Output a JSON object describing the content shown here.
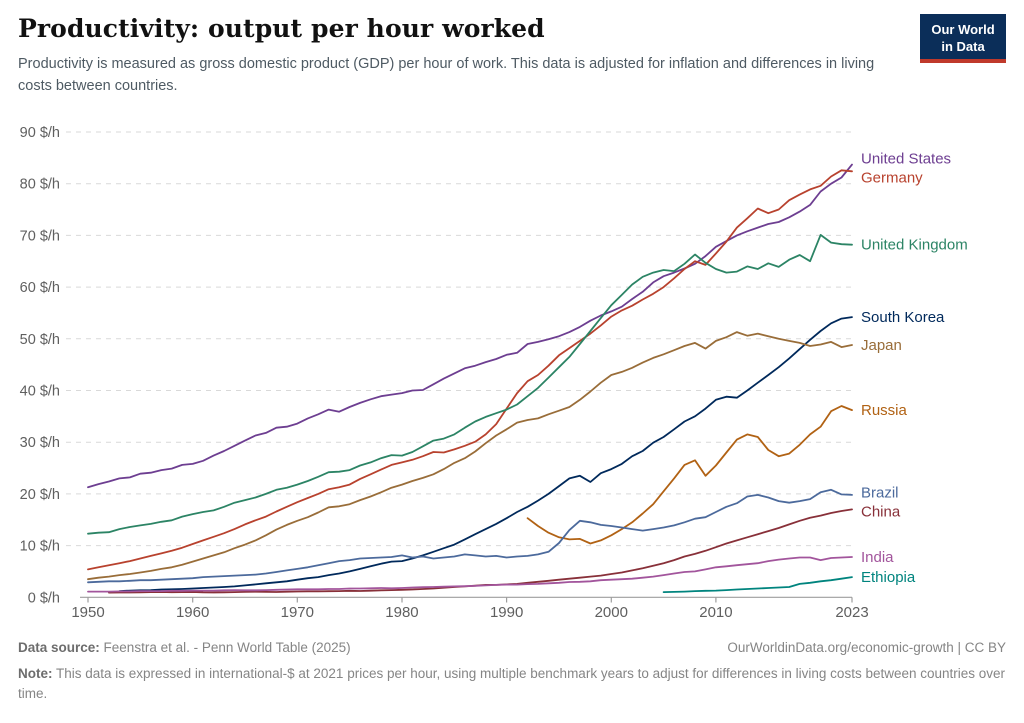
{
  "header": {
    "title": "Productivity: output per hour worked",
    "subtitle": "Productivity is measured as gross domestic product (GDP) per hour of work. This data is adjusted for inflation and differences in living costs between countries.",
    "logo": {
      "line1": "Our World",
      "line2": "in Data",
      "bg_color": "#0B2E59",
      "accent_color": "#C0392B"
    }
  },
  "chart_data": {
    "type": "line",
    "unit": "$/h",
    "xlim": [
      1950,
      2023
    ],
    "ylim": [
      0,
      90
    ],
    "y_ticks": [
      0,
      10,
      20,
      30,
      40,
      50,
      60,
      70,
      80,
      90
    ],
    "x_ticks": [
      1950,
      1960,
      1970,
      1980,
      1990,
      2000,
      2010,
      2023
    ],
    "grid": "horizontal-dashed",
    "legend": "labels-at-line-ends-right",
    "axis_color": "#9e9e9e",
    "grid_color": "#d9d9d9",
    "tick_label_color": "#5f5f5f",
    "series": [
      {
        "name": "United States",
        "color": "#6D3E91",
        "start_year": 1950,
        "values": [
          21.3,
          21.9,
          22.4,
          23.0,
          23.2,
          23.9,
          24.1,
          24.6,
          24.9,
          25.6,
          25.8,
          26.4,
          27.4,
          28.3,
          29.3,
          30.3,
          31.3,
          31.8,
          32.8,
          33.0,
          33.6,
          34.6,
          35.4,
          36.3,
          35.9,
          36.8,
          37.6,
          38.3,
          38.9,
          39.2,
          39.5,
          40.0,
          40.1,
          41.2,
          42.3,
          43.3,
          44.3,
          44.8,
          45.5,
          46.1,
          46.9,
          47.3,
          49.0,
          49.4,
          49.9,
          50.5,
          51.3,
          52.3,
          53.5,
          54.5,
          55.3,
          56.2,
          57.7,
          59.1,
          60.9,
          62.1,
          62.8,
          63.6,
          64.5,
          66.0,
          67.8,
          68.9,
          70.0,
          70.8,
          71.5,
          72.2,
          72.6,
          73.5,
          74.6,
          75.9,
          78.5,
          80.0,
          81.2,
          83.7
        ]
      },
      {
        "name": "Germany",
        "color": "#B8422E",
        "start_year": 1950,
        "values": [
          5.4,
          5.8,
          6.2,
          6.6,
          7.0,
          7.5,
          8.0,
          8.5,
          9.0,
          9.6,
          10.3,
          11.0,
          11.7,
          12.4,
          13.2,
          14.1,
          14.9,
          15.6,
          16.6,
          17.5,
          18.4,
          19.2,
          20.0,
          20.9,
          21.3,
          21.8,
          22.9,
          23.8,
          24.7,
          25.6,
          26.1,
          26.6,
          27.3,
          28.1,
          28.0,
          28.6,
          29.3,
          30.1,
          31.5,
          33.5,
          36.5,
          39.5,
          41.8,
          43.0,
          44.8,
          46.8,
          48.2,
          49.6,
          51.0,
          52.6,
          54.3,
          55.5,
          56.4,
          57.6,
          58.7,
          60.0,
          61.7,
          63.5,
          65.0,
          64.3,
          66.5,
          68.8,
          71.5,
          73.3,
          75.2,
          74.3,
          75.0,
          76.8,
          77.9,
          78.9,
          79.6,
          81.4,
          82.6,
          82.4
        ]
      },
      {
        "name": "United Kingdom",
        "color": "#2C8465",
        "start_year": 1950,
        "values": [
          12.3,
          12.5,
          12.6,
          13.2,
          13.6,
          13.9,
          14.2,
          14.6,
          14.9,
          15.6,
          16.1,
          16.5,
          16.8,
          17.5,
          18.3,
          18.8,
          19.3,
          20.0,
          20.8,
          21.2,
          21.8,
          22.5,
          23.3,
          24.2,
          24.3,
          24.6,
          25.5,
          26.1,
          26.9,
          27.5,
          27.4,
          28.1,
          29.2,
          30.3,
          30.7,
          31.5,
          32.8,
          34.0,
          34.9,
          35.6,
          36.3,
          37.3,
          38.9,
          40.5,
          42.5,
          44.5,
          46.5,
          49.0,
          51.5,
          54.0,
          56.5,
          58.5,
          60.5,
          62.0,
          62.8,
          63.3,
          63.1,
          64.5,
          66.3,
          64.7,
          63.5,
          62.8,
          63.0,
          64.0,
          63.5,
          64.6,
          63.9,
          65.3,
          66.2,
          65.0,
          70.1,
          68.6,
          68.3,
          68.2
        ]
      },
      {
        "name": "South Korea",
        "color": "#00295B",
        "start_year": 1953,
        "values": [
          1.2,
          1.3,
          1.35,
          1.4,
          1.5,
          1.55,
          1.6,
          1.7,
          1.8,
          1.9,
          2.0,
          2.1,
          2.3,
          2.5,
          2.7,
          2.9,
          3.1,
          3.4,
          3.7,
          3.9,
          4.3,
          4.6,
          5.0,
          5.5,
          6.0,
          6.5,
          6.9,
          7.0,
          7.5,
          8.1,
          8.8,
          9.5,
          10.2,
          11.2,
          12.2,
          13.2,
          14.2,
          15.3,
          16.5,
          17.5,
          18.7,
          20.0,
          21.5,
          23.0,
          23.5,
          22.3,
          24.0,
          24.8,
          25.8,
          27.3,
          28.3,
          29.9,
          31.0,
          32.5,
          34.0,
          35.0,
          36.5,
          38.2,
          38.8,
          38.6,
          40.0,
          41.5,
          43.0,
          44.5,
          46.2,
          48.0,
          49.8,
          51.5,
          53.0,
          53.9,
          54.2
        ]
      },
      {
        "name": "Japan",
        "color": "#996D39",
        "start_year": 1950,
        "values": [
          3.5,
          3.8,
          4.0,
          4.3,
          4.5,
          4.8,
          5.1,
          5.5,
          5.8,
          6.3,
          6.9,
          7.5,
          8.1,
          8.7,
          9.5,
          10.2,
          11.0,
          12.0,
          13.1,
          14.0,
          14.8,
          15.5,
          16.4,
          17.4,
          17.6,
          18.0,
          18.8,
          19.5,
          20.3,
          21.2,
          21.8,
          22.5,
          23.1,
          23.8,
          24.8,
          26.0,
          26.9,
          28.2,
          29.8,
          31.3,
          32.5,
          33.8,
          34.3,
          34.6,
          35.4,
          36.1,
          36.8,
          38.2,
          39.8,
          41.5,
          43.0,
          43.6,
          44.4,
          45.4,
          46.3,
          47.0,
          47.8,
          48.6,
          49.2,
          48.1,
          49.6,
          50.3,
          51.3,
          50.6,
          51.0,
          50.5,
          50.0,
          49.6,
          49.2,
          48.6,
          48.9,
          49.4,
          48.4,
          48.8
        ]
      },
      {
        "name": "Russia",
        "color": "#B16214",
        "start_year": 1992,
        "values": [
          15.3,
          13.8,
          12.5,
          11.6,
          11.2,
          11.3,
          10.4,
          11.0,
          12.0,
          13.2,
          14.5,
          16.2,
          18.0,
          20.5,
          23.0,
          25.6,
          26.5,
          23.5,
          25.5,
          28.0,
          30.5,
          31.5,
          31.0,
          28.5,
          27.3,
          27.8,
          29.5,
          31.5,
          33.0,
          36.0,
          37.0,
          36.2
        ]
      },
      {
        "name": "Brazil",
        "color": "#4C6A9C",
        "start_year": 1950,
        "values": [
          2.9,
          3.0,
          3.1,
          3.1,
          3.2,
          3.3,
          3.3,
          3.4,
          3.5,
          3.6,
          3.7,
          3.9,
          4.0,
          4.1,
          4.2,
          4.3,
          4.4,
          4.6,
          4.9,
          5.2,
          5.5,
          5.8,
          6.2,
          6.6,
          7.0,
          7.2,
          7.5,
          7.6,
          7.7,
          7.8,
          8.1,
          7.7,
          7.9,
          7.5,
          7.7,
          7.9,
          8.3,
          8.1,
          7.9,
          8.0,
          7.7,
          7.9,
          8.0,
          8.3,
          8.8,
          10.5,
          13.0,
          14.8,
          14.5,
          14.0,
          13.8,
          13.5,
          13.2,
          12.9,
          13.2,
          13.5,
          13.9,
          14.5,
          15.2,
          15.5,
          16.5,
          17.5,
          18.2,
          19.5,
          19.8,
          19.3,
          18.6,
          18.3,
          18.6,
          19.0,
          20.3,
          20.8,
          19.9,
          19.8
        ]
      },
      {
        "name": "China",
        "color": "#883039",
        "start_year": 1952,
        "values": [
          0.9,
          0.92,
          0.93,
          0.95,
          1.0,
          1.02,
          0.98,
          1.0,
          1.02,
          0.95,
          0.93,
          0.97,
          1.0,
          1.05,
          1.08,
          1.05,
          1.02,
          1.08,
          1.12,
          1.15,
          1.15,
          1.18,
          1.2,
          1.25,
          1.22,
          1.28,
          1.35,
          1.4,
          1.45,
          1.5,
          1.6,
          1.7,
          1.85,
          2.0,
          2.1,
          2.25,
          2.4,
          2.4,
          2.5,
          2.6,
          2.8,
          3.0,
          3.2,
          3.4,
          3.6,
          3.8,
          4.0,
          4.2,
          4.5,
          4.8,
          5.2,
          5.6,
          6.1,
          6.6,
          7.2,
          7.9,
          8.4,
          9.0,
          9.7,
          10.4,
          11.0,
          11.6,
          12.2,
          12.8,
          13.4,
          14.1,
          14.8,
          15.4,
          15.8,
          16.3,
          16.7,
          17.0
        ]
      },
      {
        "name": "India",
        "color": "#A2559C",
        "start_year": 1950,
        "values": [
          1.1,
          1.1,
          1.1,
          1.15,
          1.15,
          1.2,
          1.2,
          1.2,
          1.25,
          1.25,
          1.3,
          1.3,
          1.3,
          1.35,
          1.4,
          1.35,
          1.35,
          1.4,
          1.45,
          1.5,
          1.55,
          1.55,
          1.55,
          1.6,
          1.6,
          1.7,
          1.7,
          1.75,
          1.8,
          1.75,
          1.8,
          1.9,
          1.95,
          2.0,
          2.05,
          2.1,
          2.15,
          2.2,
          2.3,
          2.4,
          2.45,
          2.45,
          2.55,
          2.6,
          2.7,
          2.8,
          2.95,
          3.0,
          3.1,
          3.3,
          3.4,
          3.5,
          3.6,
          3.8,
          4.0,
          4.3,
          4.6,
          4.9,
          5.0,
          5.4,
          5.8,
          6.0,
          6.2,
          6.4,
          6.6,
          7.0,
          7.3,
          7.5,
          7.7,
          7.7,
          7.2,
          7.6,
          7.7,
          7.8
        ]
      },
      {
        "name": "Ethiopia",
        "color": "#00847E",
        "start_year": 2005,
        "values": [
          1.0,
          1.05,
          1.1,
          1.2,
          1.25,
          1.3,
          1.4,
          1.5,
          1.6,
          1.7,
          1.8,
          1.9,
          2.0,
          2.6,
          2.8,
          3.1,
          3.3,
          3.6,
          3.9
        ]
      }
    ]
  },
  "footer": {
    "datasource_label": "Data source:",
    "datasource": "Feenstra et al. - Penn World Table (2025)",
    "link": "OurWorldinData.org/economic-growth | CC BY",
    "note_label": "Note:",
    "note": "This data is expressed in international-$ at 2021 prices per hour, using multiple benchmark years to adjust for differences in living costs between countries over time."
  }
}
